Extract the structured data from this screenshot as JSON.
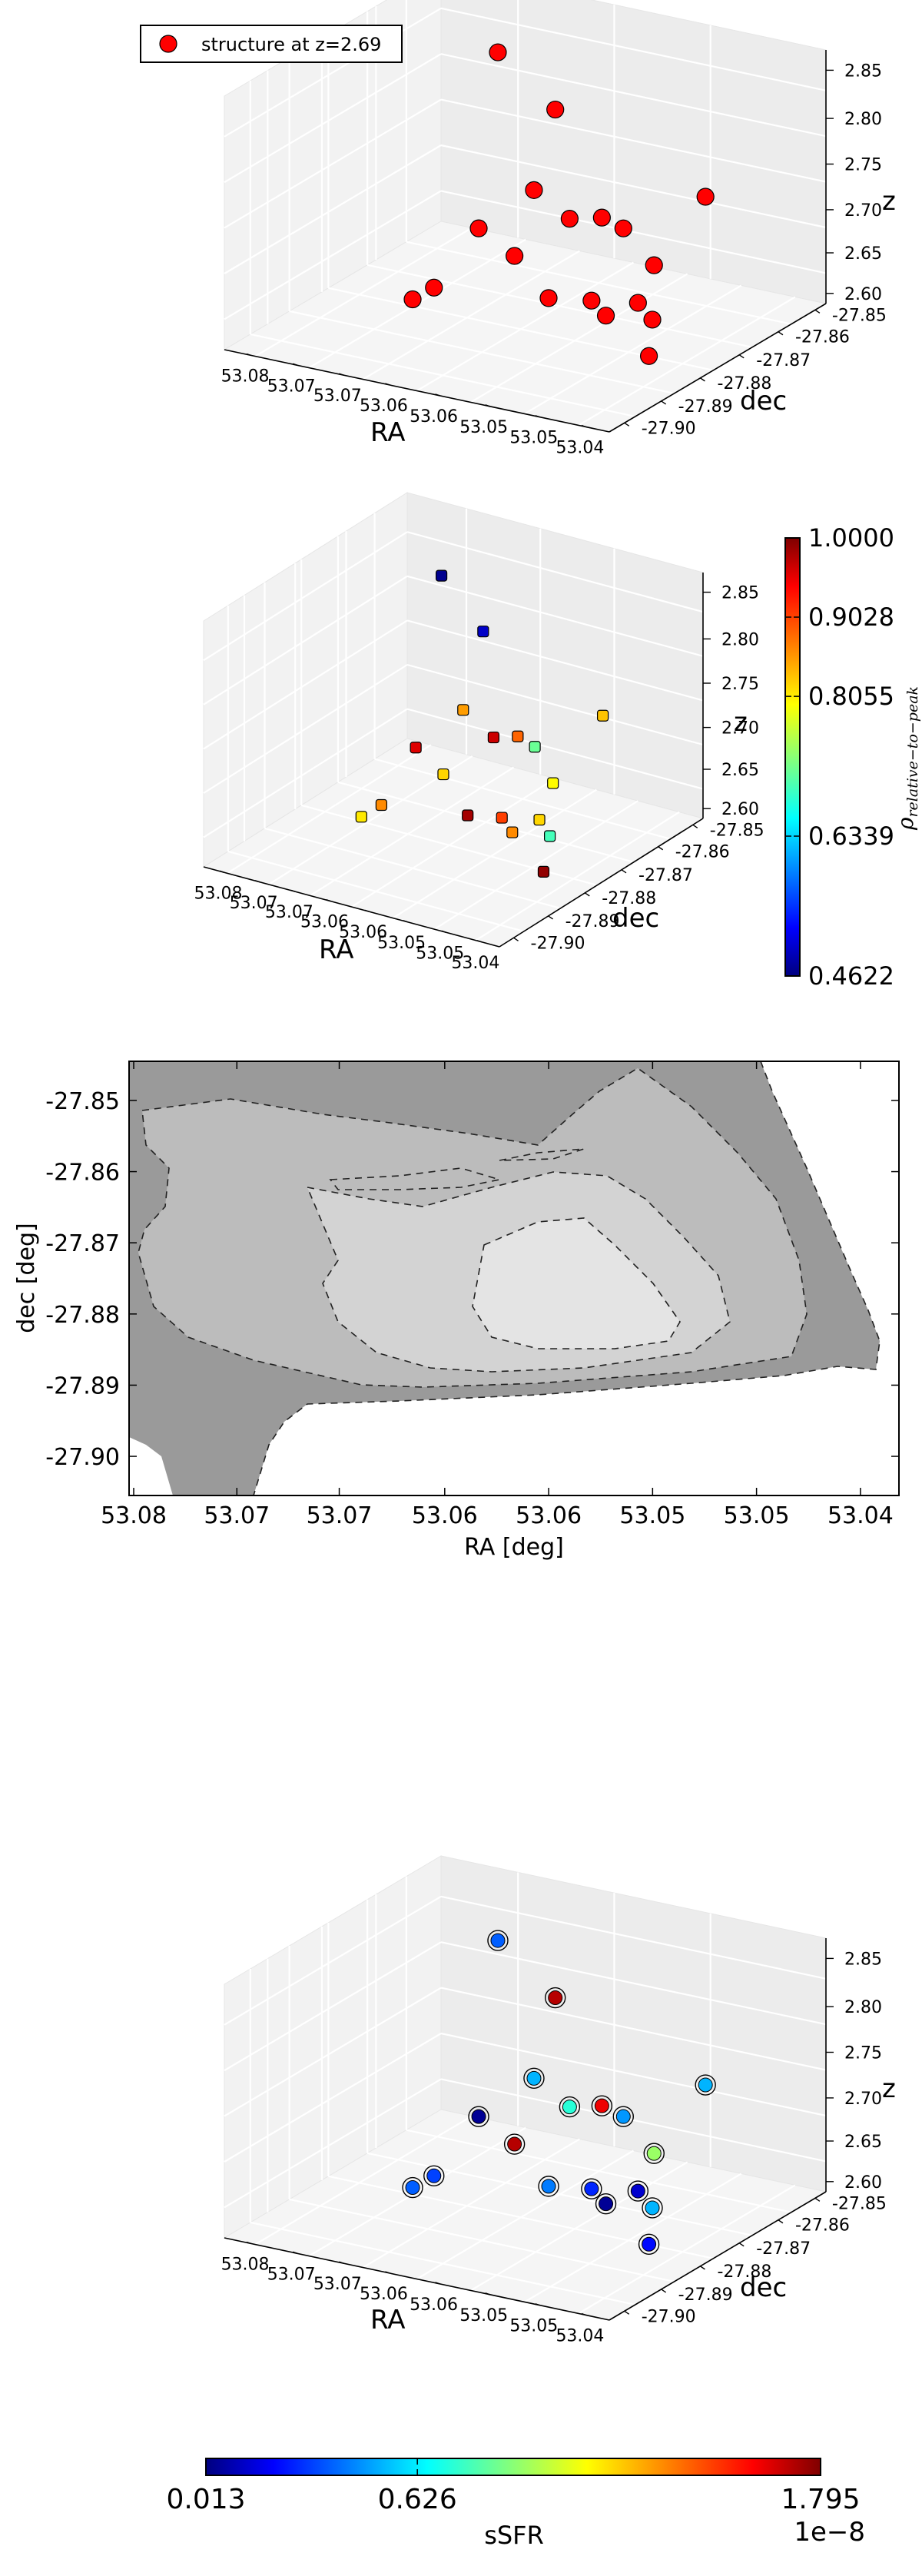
{
  "charts": [
    {
      "type": "scatter3d",
      "legend": {
        "label": "structure at z=2.69",
        "placement": "top-left"
      },
      "xlabel": "RA",
      "ylabel": "dec",
      "zlabel": "z",
      "xticks": [
        "53.08",
        "53.07",
        "53.07",
        "53.06",
        "53.06",
        "53.05",
        "53.05",
        "53.04"
      ],
      "yticks": [
        "-27.85",
        "-27.86",
        "-27.87",
        "-27.88",
        "-27.89",
        "-27.90"
      ],
      "zticks": [
        "2.85",
        "2.80",
        "2.75",
        "2.70",
        "2.65",
        "2.60"
      ],
      "marker_color": "#ff0000",
      "points": [
        {
          "ra": 53.07,
          "dec": -27.86,
          "z": 2.834
        },
        {
          "ra": 53.062,
          "dec": -27.864,
          "z": 2.797
        },
        {
          "ra": 53.062,
          "dec": -27.87,
          "z": 2.722
        },
        {
          "ra": 53.065,
          "dec": -27.878,
          "z": 2.692
        },
        {
          "ra": 53.06,
          "dec": -27.865,
          "z": 2.683
        },
        {
          "ra": 53.061,
          "dec": -27.878,
          "z": 2.67
        },
        {
          "ra": 53.056,
          "dec": -27.866,
          "z": 2.695
        },
        {
          "ra": 53.054,
          "dec": -27.865,
          "z": 2.685
        },
        {
          "ra": 53.048,
          "dec": -27.857,
          "z": 2.714
        },
        {
          "ra": 53.047,
          "dec": -27.874,
          "z": 2.68
        },
        {
          "ra": 53.056,
          "dec": -27.881,
          "z": 2.641
        },
        {
          "ra": 53.052,
          "dec": -27.879,
          "z": 2.642
        },
        {
          "ra": 53.05,
          "dec": -27.88,
          "z": 2.632
        },
        {
          "ra": 53.048,
          "dec": -27.876,
          "z": 2.641
        },
        {
          "ra": 53.046,
          "dec": -27.877,
          "z": 2.629
        },
        {
          "ra": 53.044,
          "dec": -27.883,
          "z": 2.607
        },
        {
          "ra": 53.07,
          "dec": -27.878,
          "z": 2.616
        },
        {
          "ra": 53.07,
          "dec": -27.884,
          "z": 2.617
        }
      ]
    },
    {
      "type": "scatter3d",
      "xlabel": "RA",
      "ylabel": "dec",
      "zlabel": "z",
      "xticks": [
        "53.08",
        "53.07",
        "53.07",
        "53.06",
        "53.06",
        "53.05",
        "53.05",
        "53.04"
      ],
      "yticks": [
        "-27.85",
        "-27.86",
        "-27.87",
        "-27.88",
        "-27.89",
        "-27.90"
      ],
      "zticks": [
        "2.85",
        "2.80",
        "2.75",
        "2.70",
        "2.65",
        "2.60"
      ],
      "colorbar": {
        "label": "ρ",
        "label_subscript": "relative−to−peak",
        "ticks": [
          "1.0000",
          "0.9028",
          "0.8055",
          "0.6339",
          "0.4622"
        ],
        "min": 0.4622,
        "max": 1.0
      },
      "points": [
        {
          "ra": 53.07,
          "dec": -27.86,
          "z": 2.834,
          "rho": 0.47
        },
        {
          "ra": 53.062,
          "dec": -27.864,
          "z": 2.797,
          "rho": 0.5
        },
        {
          "ra": 53.062,
          "dec": -27.87,
          "z": 2.722,
          "rho": 0.85
        },
        {
          "ra": 53.065,
          "dec": -27.878,
          "z": 2.692,
          "rho": 0.95
        },
        {
          "ra": 53.06,
          "dec": -27.865,
          "z": 2.683,
          "rho": 0.96
        },
        {
          "ra": 53.061,
          "dec": -27.878,
          "z": 2.67,
          "rho": 0.82
        },
        {
          "ra": 53.056,
          "dec": -27.866,
          "z": 2.695,
          "rho": 0.88
        },
        {
          "ra": 53.054,
          "dec": -27.865,
          "z": 2.685,
          "rho": 0.72
        },
        {
          "ra": 53.048,
          "dec": -27.857,
          "z": 2.714,
          "rho": 0.83
        },
        {
          "ra": 53.047,
          "dec": -27.874,
          "z": 2.68,
          "rho": 0.8
        },
        {
          "ra": 53.056,
          "dec": -27.881,
          "z": 2.641,
          "rho": 0.98
        },
        {
          "ra": 53.052,
          "dec": -27.879,
          "z": 2.642,
          "rho": 0.9
        },
        {
          "ra": 53.05,
          "dec": -27.88,
          "z": 2.632,
          "rho": 0.86
        },
        {
          "ra": 53.048,
          "dec": -27.876,
          "z": 2.641,
          "rho": 0.82
        },
        {
          "ra": 53.046,
          "dec": -27.877,
          "z": 2.629,
          "rho": 0.7
        },
        {
          "ra": 53.044,
          "dec": -27.883,
          "z": 2.607,
          "rho": 0.99
        },
        {
          "ra": 53.07,
          "dec": -27.878,
          "z": 2.616,
          "rho": 0.86
        },
        {
          "ra": 53.07,
          "dec": -27.884,
          "z": 2.617,
          "rho": 0.81
        }
      ]
    },
    {
      "type": "contour",
      "xlabel": "RA [deg]",
      "ylabel": "dec [deg]",
      "xticks": [
        "53.08",
        "53.07",
        "53.07",
        "53.06",
        "53.06",
        "53.05",
        "53.05",
        "53.04"
      ],
      "yticks": [
        "-27.85",
        "-27.86",
        "-27.87",
        "-27.88",
        "-27.89",
        "-27.90"
      ],
      "xlim": [
        53.0825,
        53.0395
      ],
      "ylim": [
        -27.9055,
        -27.8445
      ],
      "levels": [
        {
          "name": "outer",
          "color": "#9a9a9a"
        },
        {
          "name": "mid",
          "color": "#bcbcbc"
        },
        {
          "name": "inner",
          "color": "#d3d3d3"
        },
        {
          "name": "core",
          "color": "#e4e4e4"
        }
      ]
    },
    {
      "type": "scatter3d",
      "xlabel": "RA",
      "ylabel": "dec",
      "zlabel": "z",
      "xticks": [
        "53.08",
        "53.07",
        "53.07",
        "53.06",
        "53.06",
        "53.05",
        "53.05",
        "53.04"
      ],
      "yticks": [
        "-27.85",
        "-27.86",
        "-27.87",
        "-27.88",
        "-27.89",
        "-27.90"
      ],
      "zticks": [
        "2.85",
        "2.80",
        "2.75",
        "2.70",
        "2.65",
        "2.60"
      ],
      "colorbar": {
        "label": "sSFR",
        "ticks": [
          "0.013",
          "0.626",
          "1.795"
        ],
        "offset": "1e−8",
        "min": 0.013,
        "max": 1.795
      },
      "points": [
        {
          "ra": 53.07,
          "dec": -27.86,
          "z": 2.834,
          "ssfr": 0.4
        },
        {
          "ra": 53.062,
          "dec": -27.864,
          "z": 2.797,
          "ssfr": 1.7
        },
        {
          "ra": 53.062,
          "dec": -27.87,
          "z": 2.722,
          "ssfr": 0.55
        },
        {
          "ra": 53.065,
          "dec": -27.878,
          "z": 2.692,
          "ssfr": 0.05
        },
        {
          "ra": 53.06,
          "dec": -27.865,
          "z": 2.683,
          "ssfr": 0.75
        },
        {
          "ra": 53.061,
          "dec": -27.878,
          "z": 2.67,
          "ssfr": 1.7
        },
        {
          "ra": 53.056,
          "dec": -27.866,
          "z": 2.695,
          "ssfr": 1.6
        },
        {
          "ra": 53.054,
          "dec": -27.865,
          "z": 2.685,
          "ssfr": 0.5
        },
        {
          "ra": 53.048,
          "dec": -27.857,
          "z": 2.714,
          "ssfr": 0.55
        },
        {
          "ra": 53.047,
          "dec": -27.874,
          "z": 2.68,
          "ssfr": 0.95
        },
        {
          "ra": 53.056,
          "dec": -27.881,
          "z": 2.641,
          "ssfr": 0.45
        },
        {
          "ra": 53.052,
          "dec": -27.879,
          "z": 2.642,
          "ssfr": 0.3
        },
        {
          "ra": 53.05,
          "dec": -27.88,
          "z": 2.632,
          "ssfr": 0.05
        },
        {
          "ra": 53.048,
          "dec": -27.876,
          "z": 2.641,
          "ssfr": 0.15
        },
        {
          "ra": 53.046,
          "dec": -27.877,
          "z": 2.629,
          "ssfr": 0.55
        },
        {
          "ra": 53.044,
          "dec": -27.883,
          "z": 2.607,
          "ssfr": 0.25
        },
        {
          "ra": 53.07,
          "dec": -27.878,
          "z": 2.616,
          "ssfr": 0.35
        },
        {
          "ra": 53.07,
          "dec": -27.884,
          "z": 2.617,
          "ssfr": 0.4
        }
      ]
    }
  ]
}
